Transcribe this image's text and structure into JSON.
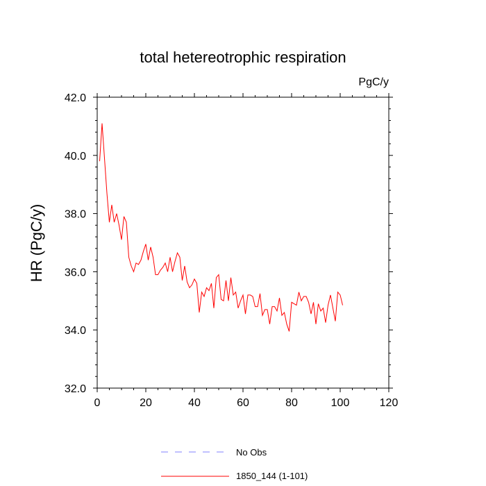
{
  "chart_data": {
    "type": "line",
    "title": "total hetereotrophic respiration",
    "units": "PgC/y",
    "ylabel": "HR  (PgC/y)",
    "xlabel": "",
    "xlim": [
      0,
      120
    ],
    "ylim": [
      32,
      42
    ],
    "xticks": [
      0,
      20,
      40,
      60,
      80,
      100,
      120
    ],
    "yticks": [
      32.0,
      34.0,
      36.0,
      38.0,
      40.0,
      42.0
    ],
    "ytick_labels": [
      "32.0",
      "34.0",
      "36.0",
      "38.0",
      "40.0",
      "42.0"
    ],
    "xminor_step": 5,
    "yminor_step": 0.4,
    "grid": false,
    "legend_position": "bottom",
    "series": [
      {
        "name": "No Obs",
        "style": "dashed",
        "color": "#8080ff",
        "x": [],
        "values": []
      },
      {
        "name": "1850_144 (1-101)",
        "style": "solid",
        "color": "#ff0000",
        "x": [
          1,
          2,
          3,
          4,
          5,
          6,
          7,
          8,
          9,
          10,
          11,
          12,
          13,
          14,
          15,
          16,
          17,
          18,
          19,
          20,
          21,
          22,
          23,
          24,
          25,
          26,
          27,
          28,
          29,
          30,
          31,
          32,
          33,
          34,
          35,
          36,
          37,
          38,
          39,
          40,
          41,
          42,
          43,
          44,
          45,
          46,
          47,
          48,
          49,
          50,
          51,
          52,
          53,
          54,
          55,
          56,
          57,
          58,
          59,
          60,
          61,
          62,
          63,
          64,
          65,
          66,
          67,
          68,
          69,
          70,
          71,
          72,
          73,
          74,
          75,
          76,
          77,
          78,
          79,
          80,
          81,
          82,
          83,
          84,
          85,
          86,
          87,
          88,
          89,
          90,
          91,
          92,
          93,
          94,
          95,
          96,
          97,
          98,
          99,
          100,
          101
        ],
        "values": [
          39.8,
          41.1,
          39.9,
          38.7,
          37.7,
          38.3,
          37.7,
          38.0,
          37.6,
          37.1,
          37.9,
          37.7,
          36.5,
          36.2,
          36.0,
          36.3,
          36.25,
          36.4,
          36.7,
          36.95,
          36.4,
          36.85,
          36.5,
          35.9,
          35.9,
          36.05,
          36.15,
          36.3,
          36.0,
          36.5,
          36.0,
          36.35,
          36.65,
          36.5,
          35.7,
          36.2,
          35.65,
          35.45,
          35.55,
          35.75,
          35.6,
          34.6,
          35.3,
          35.15,
          35.45,
          35.35,
          35.6,
          34.75,
          35.8,
          35.9,
          35.05,
          35.0,
          35.7,
          35.0,
          35.8,
          35.2,
          35.3,
          34.75,
          35.0,
          35.2,
          34.55,
          35.2,
          35.2,
          35.15,
          34.8,
          34.8,
          35.25,
          34.5,
          34.7,
          34.7,
          34.2,
          34.8,
          34.8,
          34.65,
          35.1,
          34.5,
          34.6,
          34.2,
          33.95,
          34.95,
          34.9,
          34.85,
          35.3,
          35.0,
          35.15,
          35.15,
          34.95,
          34.55,
          34.95,
          34.2,
          34.9,
          34.65,
          34.75,
          34.25,
          34.85,
          35.2,
          34.75,
          34.3,
          35.3,
          35.2,
          34.85
        ]
      }
    ]
  }
}
